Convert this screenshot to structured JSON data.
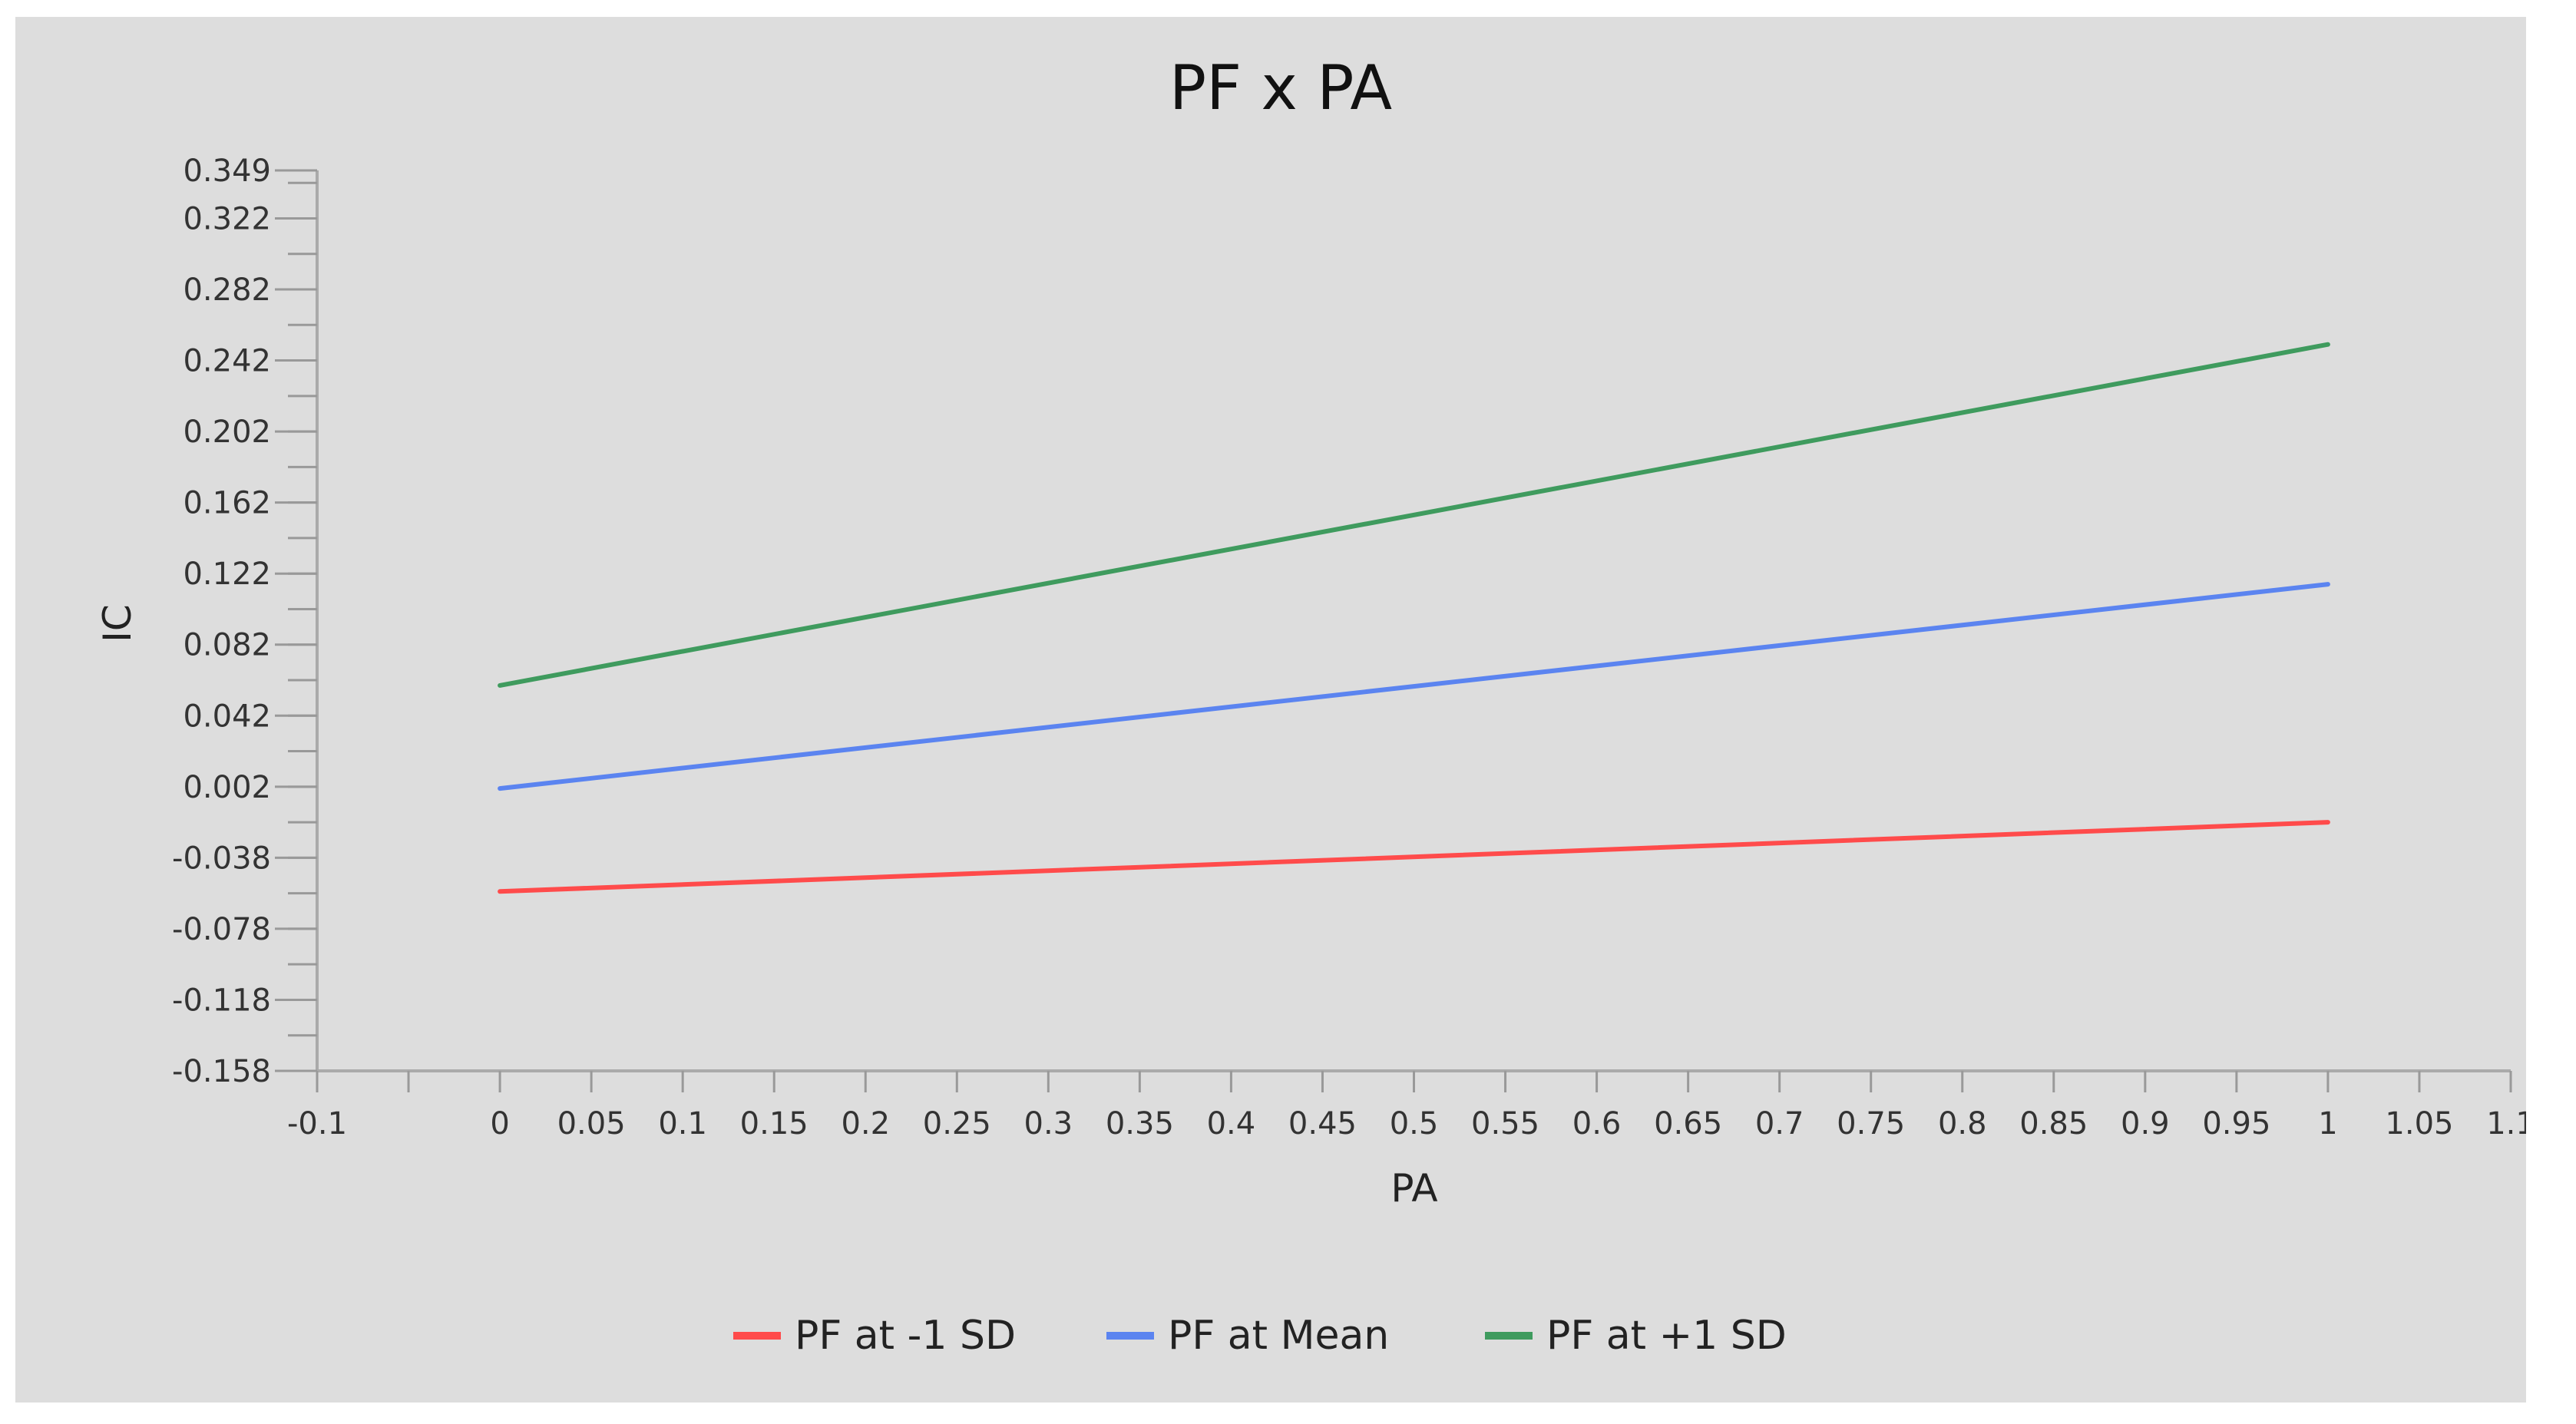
{
  "chart_data": {
    "type": "line",
    "title": "PF x PA",
    "xlabel": "PA",
    "ylabel": "IC",
    "xlim": [
      -0.1,
      1.1
    ],
    "ylim": [
      -0.158,
      0.349
    ],
    "x_ticks": [
      "-0.1",
      "0",
      "0.05",
      "0.1",
      "0.15",
      "0.2",
      "0.25",
      "0.3",
      "0.35",
      "0.4",
      "0.45",
      "0.5",
      "0.55",
      "0.6",
      "0.65",
      "0.7",
      "0.75",
      "0.8",
      "0.85",
      "0.9",
      "0.95",
      "1",
      "1.05",
      "1.1"
    ],
    "y_ticks": [
      "0.349",
      "0.322",
      "0.282",
      "0.242",
      "0.202",
      "0.162",
      "0.122",
      "0.082",
      "0.042",
      "0.002",
      "-0.038",
      "-0.078",
      "-0.118",
      "-0.158"
    ],
    "grid": false,
    "legend_position": "bottom",
    "series": [
      {
        "name": "PF at -1 SD",
        "color": "#ff4b4b",
        "x": [
          0,
          1
        ],
        "y": [
          -0.057,
          -0.018
        ]
      },
      {
        "name": "PF at Mean",
        "color": "#5b84f0",
        "x": [
          0,
          1
        ],
        "y": [
          0.001,
          0.116
        ]
      },
      {
        "name": "PF at +1 SD",
        "color": "#3f9b5e",
        "x": [
          0,
          1
        ],
        "y": [
          0.059,
          0.251
        ]
      }
    ]
  }
}
